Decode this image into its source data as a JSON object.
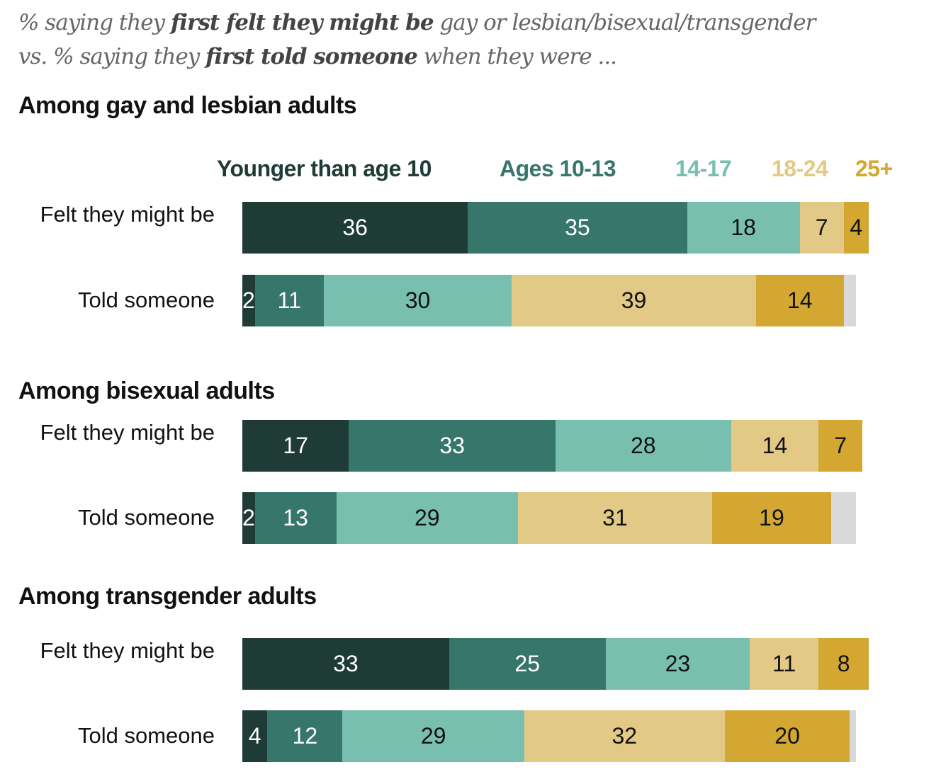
{
  "title": {
    "p1": "% saying they ",
    "b1": "first felt they might be",
    "p2": " gay or lesbian/bisexual/transgender",
    "p3": "vs. % saying they ",
    "b2": "first told someone",
    "p4": " when they were ..."
  },
  "chart_data": {
    "type": "bar",
    "orientation": "horizontal-stacked",
    "unit": "%",
    "legend": [
      "Younger than age 10",
      "Ages 10-13",
      "14-17",
      "18-24",
      "25+"
    ],
    "colors": [
      "#1f3b35",
      "#37766a",
      "#79bfb0",
      "#e2ca86",
      "#d3a732"
    ],
    "remainder_color": "#d9d9d9",
    "groups": [
      {
        "heading": "Among gay and lesbian adults",
        "rows": [
          {
            "label": "Felt they might be",
            "values": [
              36,
              35,
              18,
              7,
              4
            ],
            "remainder": 0
          },
          {
            "label": "Told someone",
            "values": [
              2,
              11,
              30,
              39,
              14
            ],
            "remainder": 2
          }
        ]
      },
      {
        "heading": "Among bisexual adults",
        "rows": [
          {
            "label": "Felt they might be",
            "values": [
              17,
              33,
              28,
              14,
              7
            ],
            "remainder": 0
          },
          {
            "label": "Told someone",
            "values": [
              2,
              13,
              29,
              31,
              19
            ],
            "remainder": 4
          }
        ]
      },
      {
        "heading": "Among transgender adults",
        "rows": [
          {
            "label": "Felt they might be",
            "values": [
              33,
              25,
              23,
              11,
              8
            ],
            "remainder": 0
          },
          {
            "label": "Told someone",
            "values": [
              4,
              12,
              29,
              32,
              20
            ],
            "remainder": 1
          }
        ]
      }
    ]
  }
}
